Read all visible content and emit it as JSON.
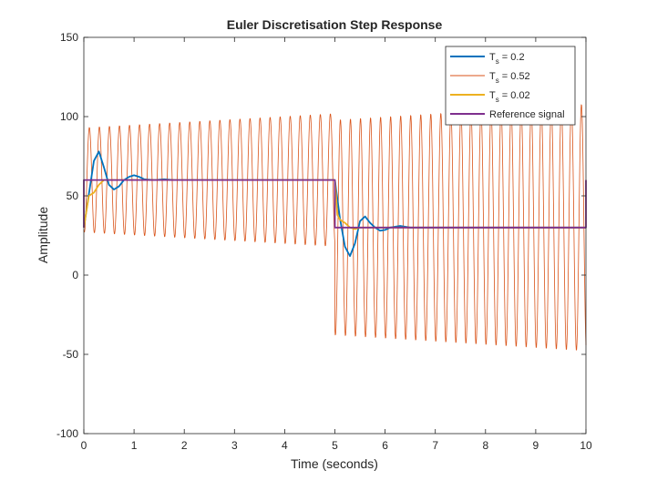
{
  "chart_data": {
    "type": "line",
    "title": "Euler Discretisation Step Response",
    "xlabel": "Time (seconds)",
    "ylabel": "Amplitude",
    "xlim": [
      0,
      10
    ],
    "ylim": [
      -100,
      150
    ],
    "xticks": [
      0,
      1,
      2,
      3,
      4,
      5,
      6,
      7,
      8,
      9,
      10
    ],
    "yticks": [
      -100,
      -50,
      0,
      50,
      100,
      150
    ],
    "grid": false,
    "legend_position": "top-right",
    "reference_step": {
      "initial": 60,
      "final": 30,
      "step_time": 5
    },
    "series": [
      {
        "name": "Ts = 0.2",
        "legend": {
          "base": "T",
          "sub": "s",
          "rest": " = 0.2"
        },
        "color": "#0072BD",
        "x": [
          0,
          0.2,
          0.3,
          0.4,
          0.5,
          0.6,
          0.7,
          0.8,
          0.9,
          1.0,
          1.1,
          1.2,
          1.4,
          1.6,
          1.8,
          2.0,
          2.5,
          3,
          4,
          5.0,
          5.1,
          5.2,
          5.3,
          5.4,
          5.5,
          5.6,
          5.7,
          5.8,
          5.9,
          6.0,
          6.1,
          6.3,
          6.5,
          6.7,
          7,
          8,
          9,
          10
        ],
        "y": [
          30,
          72,
          78,
          68,
          57,
          54,
          56,
          60,
          62,
          63,
          62,
          60.5,
          60,
          60.5,
          60,
          60,
          60,
          60,
          60,
          60,
          36,
          18,
          12,
          20,
          34,
          37,
          33,
          30,
          28,
          28.5,
          30,
          31,
          30,
          30,
          30,
          30,
          30,
          30
        ]
      },
      {
        "name": "Ts = 0.52",
        "legend": {
          "base": "T",
          "sub": "s",
          "rest": " = 0.52"
        },
        "color": "#D95319",
        "oscillation": {
          "period": 0.2,
          "phase_start_seconds": 0.06,
          "segments": [
            {
              "from": 0,
              "to": 5,
              "center": 60,
              "amp_start": 33,
              "amp_end": 42
            },
            {
              "from": 5,
              "to": 10,
              "center": 30,
              "amp_start": 68,
              "amp_end": 78
            }
          ]
        }
      },
      {
        "name": "Ts = 0.02",
        "legend": {
          "base": "T",
          "sub": "s",
          "rest": " = 0.02"
        },
        "color": "#EDB120",
        "x": [
          0,
          0.1,
          0.2,
          0.3,
          0.4,
          0.5,
          0.7,
          1,
          2,
          5,
          5.05,
          5.1,
          5.2,
          5.3,
          5.4,
          5.5,
          5.7,
          6,
          7,
          10
        ],
        "y": [
          30,
          50,
          52,
          57,
          60,
          60,
          60,
          60,
          60,
          60,
          38,
          35,
          33,
          30,
          29,
          30,
          30,
          30,
          30,
          30
        ]
      },
      {
        "name": "Reference signal",
        "legend": {
          "base": "Reference signal",
          "sub": "",
          "rest": ""
        },
        "color": "#7E2F8E",
        "x": [
          0,
          0,
          5,
          5,
          10,
          10
        ],
        "y": [
          30,
          60,
          60,
          30,
          30,
          60
        ]
      }
    ]
  }
}
